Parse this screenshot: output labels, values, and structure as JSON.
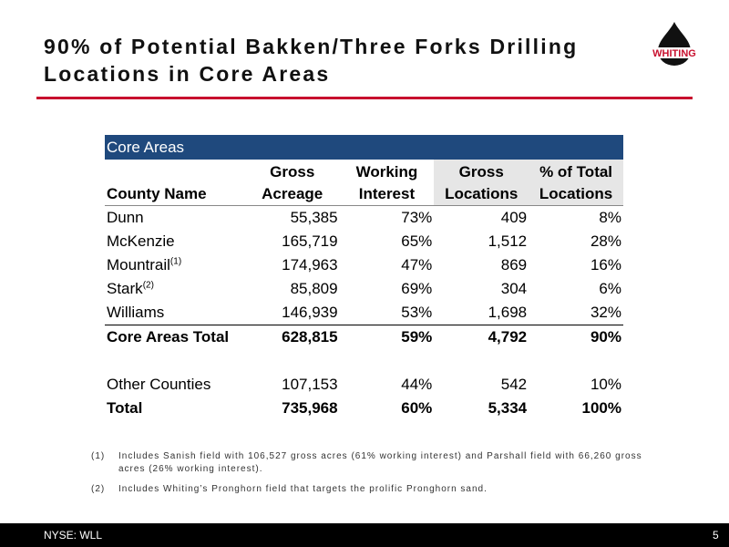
{
  "header": {
    "title": "90% of Potential Bakken/Three Forks Drilling Locations in Core Areas",
    "logo": "WHITING"
  },
  "table": {
    "section": "Core Areas",
    "headers": [
      "County Name",
      "Gross Acreage",
      "Working Interest",
      "Gross Locations",
      "% of Total Locations"
    ],
    "rows": [
      {
        "county": "Dunn",
        "values": [
          "55,385",
          "73%",
          "409",
          "8%"
        ]
      },
      {
        "county": "McKenzie",
        "values": [
          "165,719",
          "65%",
          "1,512",
          "28%"
        ]
      },
      {
        "county": "Mountrail",
        "note": "(1)",
        "values": [
          "174,963",
          "47%",
          "869",
          "16%"
        ]
      },
      {
        "county": "Stark",
        "note": "(2)",
        "values": [
          "85,809",
          "69%",
          "304",
          "6%"
        ]
      },
      {
        "county": "Williams",
        "values": [
          "146,939",
          "53%",
          "1,698",
          "32%"
        ]
      }
    ],
    "core_total": {
      "county": "Core Areas Total",
      "values": [
        "628,815",
        "59%",
        "4,792",
        "90%"
      ]
    },
    "other": {
      "county": "Other Counties",
      "values": [
        "107,153",
        "44%",
        "542",
        "10%"
      ]
    },
    "total": {
      "county": "Total",
      "values": [
        "735,968",
        "60%",
        "5,334",
        "100%"
      ]
    }
  },
  "footnotes": [
    {
      "marker": "(1)",
      "text": "Includes Sanish field with 106,527 gross acres (61% working interest) and Parshall field with 66,260 gross acres (26% working interest)."
    },
    {
      "marker": "(2)",
      "text": "Includes Whiting’s Pronghorn field that targets the prolific Pronghorn sand."
    }
  ],
  "footer": {
    "ticker": "NYSE: WLL",
    "page": "5"
  }
}
